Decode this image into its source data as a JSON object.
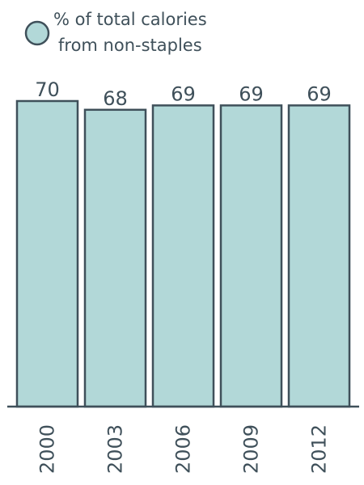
{
  "chart_data": {
    "type": "bar",
    "categories": [
      "2000",
      "2003",
      "2006",
      "2009",
      "2012"
    ],
    "series": [
      {
        "name": "% of total calories from non-staples",
        "values": [
          70,
          68,
          69,
          69,
          69
        ]
      }
    ],
    "value_labels": [
      "70",
      "68",
      "69",
      "69",
      "69"
    ],
    "legend": {
      "line1": "% of total calories",
      "line2": "from non-staples",
      "placement": "top-left"
    },
    "title": "",
    "xlabel": "",
    "ylabel": "",
    "ylim": [
      0,
      70
    ],
    "grid": false,
    "x_tick_rotation": "vertical",
    "colors": {
      "bar_fill": "#b2d8d8",
      "bar_stroke": "#3f505a",
      "text": "#3f505a",
      "axis": "#3f505a"
    }
  }
}
